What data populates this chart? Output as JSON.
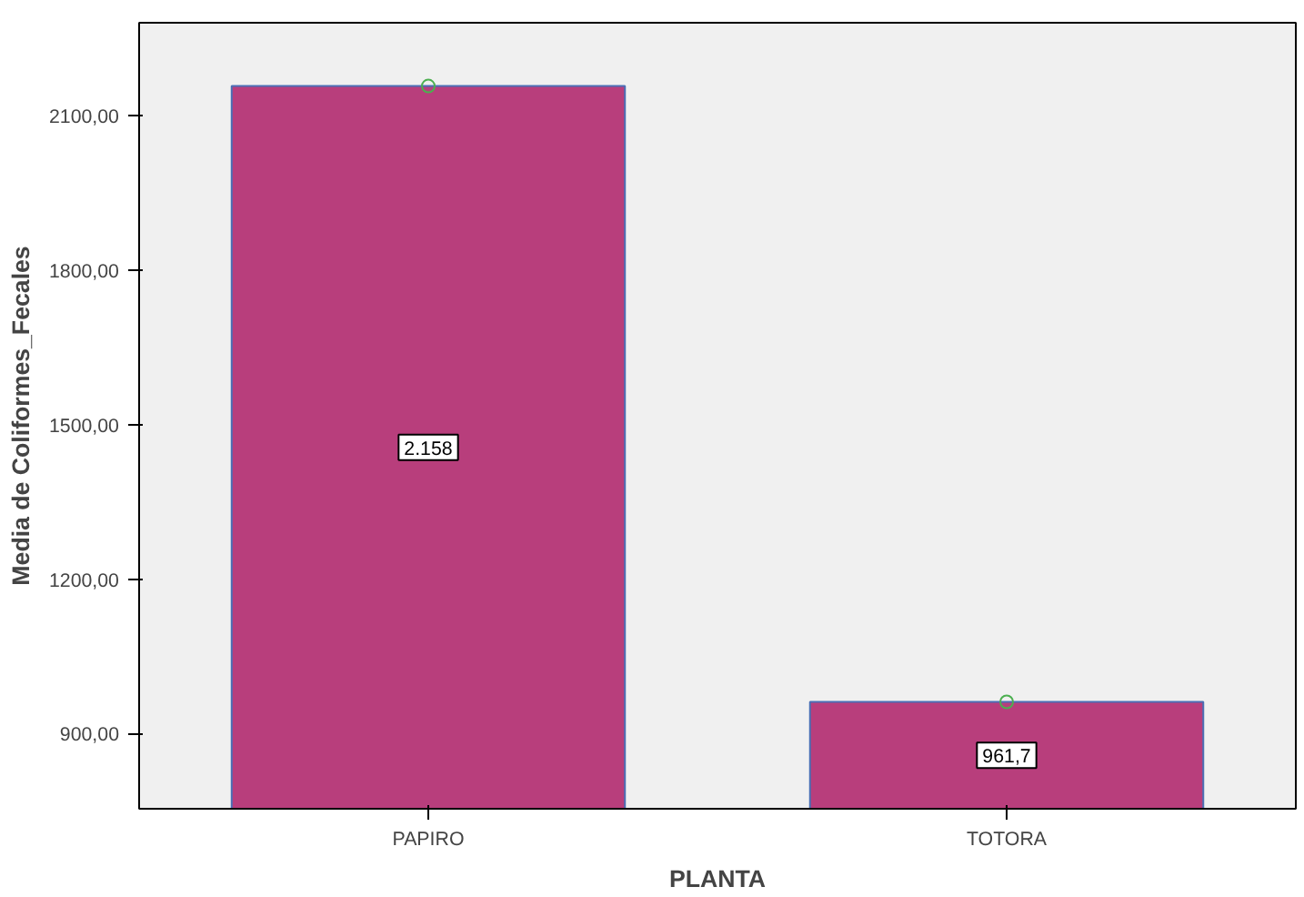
{
  "chart_data": {
    "type": "bar",
    "xlabel": "PLANTA",
    "ylabel": "Media de Coliformes_Fecales",
    "categories": [
      "PAPIRO",
      "TOTORA"
    ],
    "series": [
      {
        "color": "#b83e7c",
        "values": [
          2158,
          961.7
        ],
        "value_labels": [
          "2.158",
          "961,7"
        ]
      },
      {
        "type": "scatter",
        "color": "#4caf50",
        "x": [
          "PAPIRO",
          "TOTORA"
        ],
        "values": [
          2158,
          961.7
        ],
        "marker": "circle"
      }
    ],
    "ylim": [
      754,
      2281
    ],
    "yticks": [
      {
        "value": 900,
        "label": "900,00"
      },
      {
        "value": 1200,
        "label": "1200,00"
      },
      {
        "value": 1500,
        "label": "1500,00"
      },
      {
        "value": 1800,
        "label": "1800,00"
      },
      {
        "value": 2100,
        "label": "2100,00"
      }
    ],
    "grid": false
  }
}
